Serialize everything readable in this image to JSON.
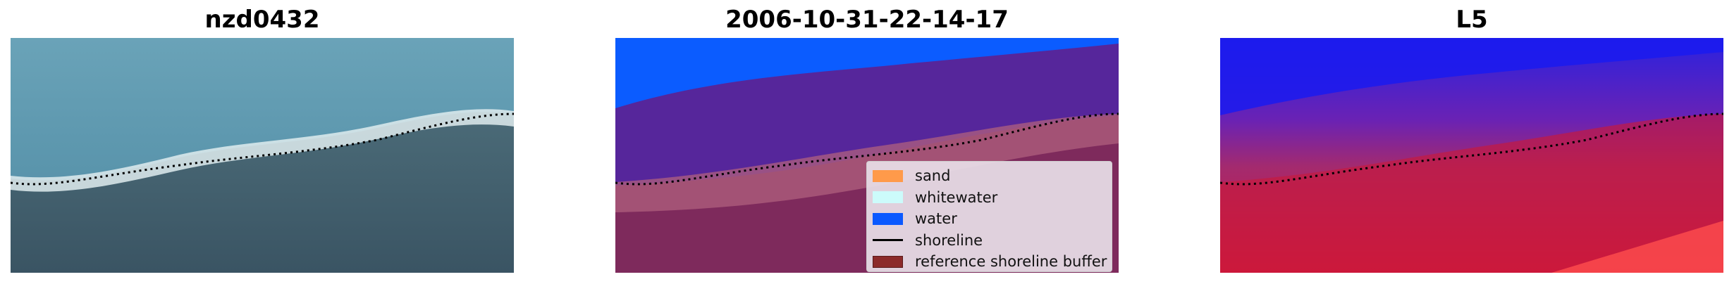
{
  "panels": [
    {
      "title": "nzd0432"
    },
    {
      "title": "2006-10-31-22-14-17"
    },
    {
      "title": "L5"
    }
  ],
  "legend": {
    "items": [
      {
        "label": "sand",
        "color": "#ff9a4a",
        "kind": "patch"
      },
      {
        "label": "whitewater",
        "color": "#ccfbfb",
        "kind": "patch"
      },
      {
        "label": "water",
        "color": "#0b59ff",
        "kind": "patch"
      },
      {
        "label": "shoreline",
        "color": "#000000",
        "kind": "line"
      },
      {
        "label": "reference shoreline buffer",
        "color": "#8c2a2a",
        "kind": "patch"
      }
    ]
  },
  "colors": {
    "sea": "#5f98ad",
    "surf": "#d9e7ea",
    "land": "#3f5a68",
    "class_water": "#0b5cff",
    "class_sea_purple": "#56269b",
    "class_land": "#7e2a5c",
    "class_buffer": "#b0607e",
    "l5_blue": "#1a1af0",
    "l5_purple": "#6a1eb0",
    "l5_red": "#c8183c"
  }
}
